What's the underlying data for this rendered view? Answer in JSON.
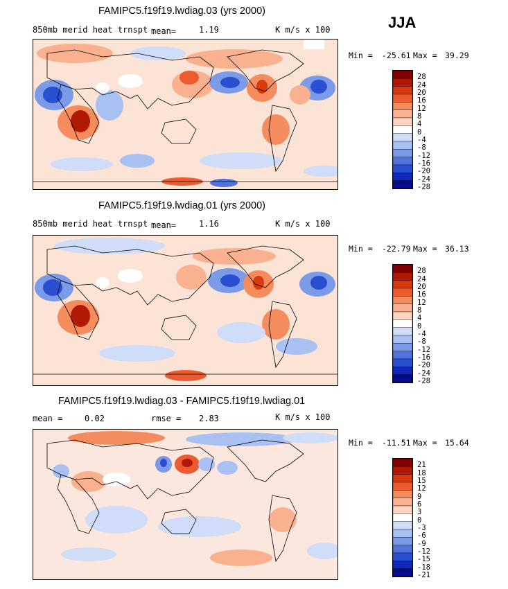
{
  "season": "JJA",
  "chart_data": [
    {
      "type": "heatmap",
      "title": "FAMIPC5.f19f19.lwdiag.03 (yrs 2000)",
      "variable_label": "850mb merid heat trnspt",
      "mean_label": "mean=",
      "mean_value": "1.19",
      "units": "K m/s x 100",
      "min_label": "Min =",
      "min_value": "-25.61",
      "max_label": "Max =",
      "max_value": "39.29",
      "colorbar_levels": [
        "28",
        "24",
        "20",
        "16",
        "12",
        "8",
        "4",
        "0",
        "-4",
        "-8",
        "-12",
        "-16",
        "-20",
        "-24",
        "-28"
      ]
    },
    {
      "type": "heatmap",
      "title": "FAMIPC5.f19f19.lwdiag.01 (yrs 2000)",
      "variable_label": "850mb merid heat trnspt",
      "mean_label": "mean=",
      "mean_value": "1.16",
      "units": "K m/s x 100",
      "min_label": "Min =",
      "min_value": "-22.79",
      "max_label": "Max =",
      "max_value": "36.13",
      "colorbar_levels": [
        "28",
        "24",
        "20",
        "16",
        "12",
        "8",
        "4",
        "0",
        "-4",
        "-8",
        "-12",
        "-16",
        "-20",
        "-24",
        "-28"
      ]
    },
    {
      "type": "heatmap",
      "title": "FAMIPC5.f19f19.lwdiag.03 - FAMIPC5.f19f19.lwdiag.01",
      "mean_label": "mean =",
      "mean_value": "0.02",
      "rmse_label": "rmse =",
      "rmse_value": "2.83",
      "units": "K m/s x 100",
      "min_label": "Min =",
      "min_value": "-11.51",
      "max_label": "Max =",
      "max_value": "15.64",
      "colorbar_levels": [
        "21",
        "18",
        "15",
        "12",
        "9",
        "6",
        "3",
        "0",
        "-3",
        "-6",
        "-9",
        "-12",
        "-15",
        "-18",
        "-21"
      ]
    }
  ],
  "colors": [
    "#7f0000",
    "#b01a05",
    "#d83a10",
    "#ec5a30",
    "#f58c5e",
    "#f9b190",
    "#fcd5c0",
    "#ffffff",
    "#cfddf8",
    "#a8c0f2",
    "#7b9ae8",
    "#4f72dd",
    "#2a4fd0",
    "#0f28b8",
    "#050b8a"
  ]
}
